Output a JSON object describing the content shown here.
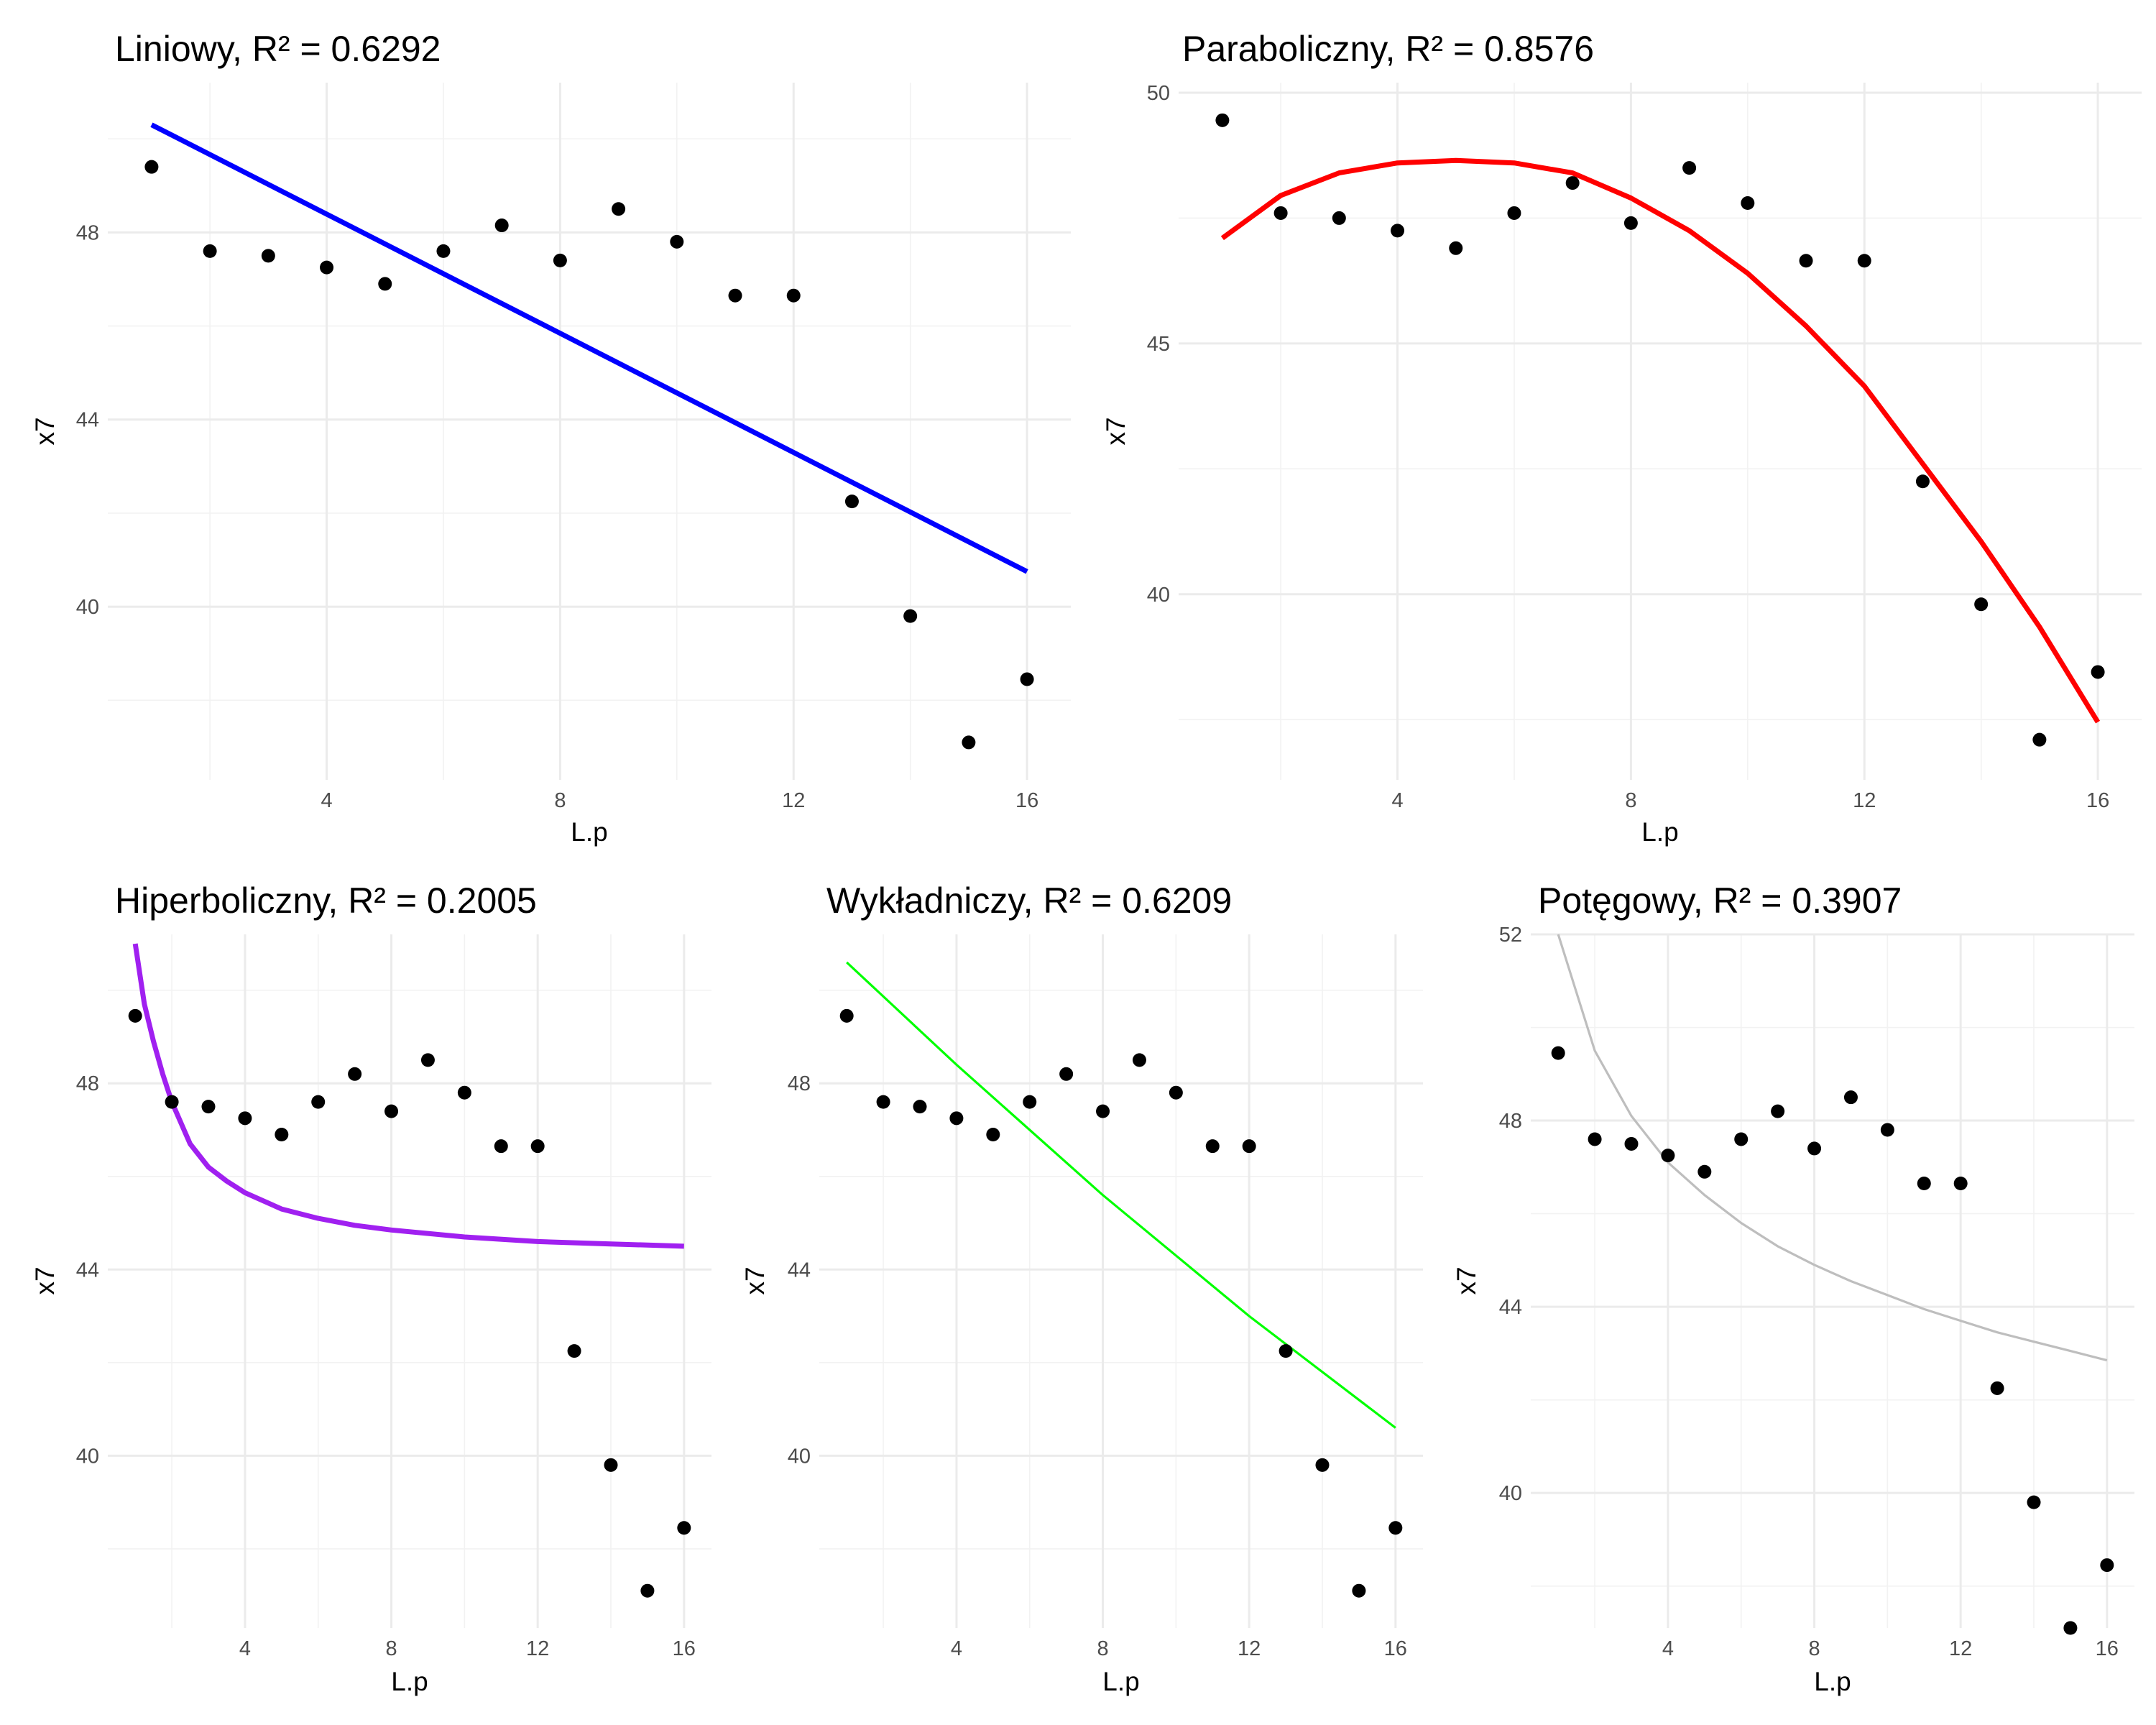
{
  "chart_data": [
    {
      "type": "scatter",
      "title": "Liniowy, R² = 0.6292",
      "xlabel": "L.p",
      "ylabel": "x7",
      "x": [
        1,
        2,
        3,
        4,
        5,
        6,
        7,
        8,
        9,
        10,
        11,
        12,
        13,
        14,
        15,
        16
      ],
      "y": [
        49.4,
        47.6,
        47.5,
        47.25,
        46.9,
        47.6,
        48.15,
        47.4,
        48.5,
        47.8,
        46.65,
        46.65,
        42.25,
        39.8,
        37.1,
        38.45
      ],
      "xlim": [
        0.25,
        16.75
      ],
      "ylim": [
        36.3,
        51.2
      ],
      "xticks": [
        4,
        8,
        12,
        16
      ],
      "yticks": [
        40,
        44,
        48
      ],
      "grid": true,
      "fit": {
        "name": "Liniowy",
        "color": "#0000FF",
        "x": [
          1,
          16
        ],
        "y": [
          50.3,
          40.75
        ]
      }
    },
    {
      "type": "scatter",
      "title": "Paraboliczny, R² = 0.8576",
      "xlabel": "L.p",
      "ylabel": "x7",
      "x": [
        1,
        2,
        3,
        4,
        5,
        6,
        7,
        8,
        9,
        10,
        11,
        12,
        13,
        14,
        15,
        16
      ],
      "y": [
        49.45,
        47.6,
        47.5,
        47.25,
        46.9,
        47.6,
        48.2,
        47.4,
        48.5,
        47.8,
        46.65,
        46.65,
        42.25,
        39.8,
        37.1,
        38.45
      ],
      "xlim": [
        0.25,
        16.75
      ],
      "ylim": [
        36.3,
        50.2
      ],
      "xticks": [
        4,
        8,
        12,
        16
      ],
      "yticks": [
        40,
        45,
        50
      ],
      "grid": true,
      "fit": {
        "name": "Paraboliczny",
        "color": "#FF0000",
        "x": [
          1,
          2,
          3,
          4,
          5,
          6,
          7,
          8,
          9,
          10,
          11,
          12,
          13,
          14,
          15,
          16
        ],
        "y": [
          47.1,
          47.95,
          48.4,
          48.6,
          48.65,
          48.6,
          48.4,
          47.9,
          47.25,
          46.4,
          45.35,
          44.15,
          42.6,
          41.05,
          39.35,
          37.45
        ]
      }
    },
    {
      "type": "scatter",
      "title": "Hiperboliczny, R² = 0.2005",
      "xlabel": "L.p",
      "ylabel": "x7",
      "x": [
        1,
        2,
        3,
        4,
        5,
        6,
        7,
        8,
        9,
        10,
        11,
        12,
        13,
        14,
        15,
        16
      ],
      "y": [
        49.45,
        47.6,
        47.5,
        47.25,
        46.9,
        47.6,
        48.2,
        47.4,
        48.5,
        47.8,
        46.65,
        46.65,
        42.25,
        39.8,
        37.1,
        38.45
      ],
      "xlim": [
        0.25,
        16.75
      ],
      "ylim": [
        36.3,
        51.2
      ],
      "xticks": [
        4,
        8,
        12,
        16
      ],
      "yticks": [
        40,
        44,
        48
      ],
      "grid": true,
      "fit": {
        "name": "Hiperboliczny",
        "color": "#A020F0",
        "x": [
          1,
          1.25,
          1.5,
          1.75,
          2,
          2.5,
          3,
          3.5,
          4,
          5,
          6,
          7,
          8,
          10,
          12,
          14,
          16
        ],
        "y": [
          51.0,
          49.7,
          48.9,
          48.2,
          47.6,
          46.7,
          46.2,
          45.9,
          45.65,
          45.3,
          45.1,
          44.95,
          44.85,
          44.7,
          44.6,
          44.55,
          44.5
        ]
      }
    },
    {
      "type": "scatter",
      "title": "Wykładniczy, R² = 0.6209",
      "xlabel": "L.p",
      "ylabel": "x7",
      "x": [
        1,
        2,
        3,
        4,
        5,
        6,
        7,
        8,
        9,
        10,
        11,
        12,
        13,
        14,
        15,
        16
      ],
      "y": [
        49.45,
        47.6,
        47.5,
        47.25,
        46.9,
        47.6,
        48.2,
        47.4,
        48.5,
        47.8,
        46.65,
        46.65,
        42.25,
        39.8,
        37.1,
        38.45
      ],
      "xlim": [
        0.25,
        16.75
      ],
      "ylim": [
        36.3,
        51.2
      ],
      "xticks": [
        4,
        8,
        12,
        16
      ],
      "yticks": [
        40,
        44,
        48
      ],
      "grid": true,
      "fit": {
        "name": "Wykładniczy",
        "color": "#00FF00",
        "x": [
          1,
          4,
          8,
          12,
          16
        ],
        "y": [
          50.6,
          48.4,
          45.6,
          43.0,
          40.6
        ]
      }
    },
    {
      "type": "scatter",
      "title": "Potęgowy, R² = 0.3907",
      "xlabel": "L.p",
      "ylabel": "x7",
      "x": [
        1,
        2,
        3,
        4,
        5,
        6,
        7,
        8,
        9,
        10,
        11,
        12,
        13,
        14,
        15,
        16
      ],
      "y": [
        49.45,
        47.6,
        47.5,
        47.25,
        46.9,
        47.6,
        48.2,
        47.4,
        48.5,
        47.8,
        46.65,
        46.65,
        42.25,
        39.8,
        37.1,
        38.45
      ],
      "xlim": [
        0.25,
        16.75
      ],
      "ylim": [
        37.1,
        52.0
      ],
      "xticks": [
        4,
        8,
        12,
        16
      ],
      "yticks": [
        40,
        44,
        48,
        52
      ],
      "grid": true,
      "fit": {
        "name": "Potęgowy",
        "color": "#BEBEBE",
        "x": [
          1,
          2,
          3,
          4,
          5,
          6,
          7,
          8,
          9,
          10,
          11,
          12,
          13,
          14,
          15,
          16
        ],
        "y": [
          52.0,
          49.5,
          48.1,
          47.1,
          46.4,
          45.8,
          45.3,
          44.9,
          44.55,
          44.25,
          43.95,
          43.7,
          43.45,
          43.25,
          43.05,
          42.85
        ]
      }
    }
  ]
}
